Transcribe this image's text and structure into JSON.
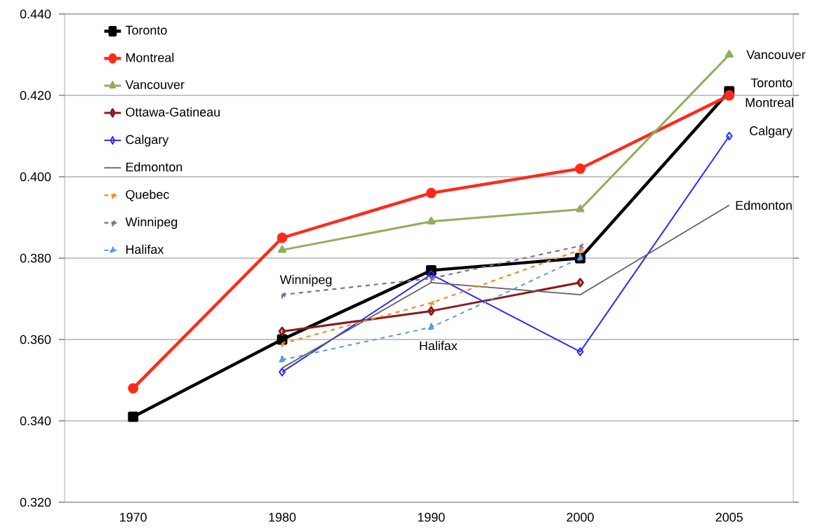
{
  "chart_data": {
    "type": "line",
    "categories": [
      "1970",
      "1980",
      "1990",
      "2000",
      "2005"
    ],
    "series": [
      {
        "name": "Toronto",
        "color": "#000000",
        "marker": "square",
        "values": [
          0.341,
          0.36,
          0.377,
          0.38,
          0.421
        ]
      },
      {
        "name": "Montreal",
        "color": "#ff2a1a",
        "marker": "circle",
        "values": [
          0.348,
          0.385,
          0.396,
          0.402,
          0.42
        ]
      },
      {
        "name": "Vancouver",
        "color": "#8fb05a",
        "marker": "triangle",
        "values": [
          null,
          0.382,
          0.389,
          0.392,
          0.43
        ]
      },
      {
        "name": "Ottawa-Gatineau",
        "color": "#8b1a1a",
        "marker": "diamond",
        "values": [
          null,
          0.362,
          0.367,
          0.374,
          null
        ]
      },
      {
        "name": "Calgary",
        "color": "#2a2aff",
        "marker": "diamond",
        "values": [
          null,
          0.352,
          0.376,
          0.357,
          0.41
        ]
      },
      {
        "name": "Edmonton",
        "color": "#606060",
        "marker": "none",
        "values": [
          null,
          0.353,
          0.374,
          0.371,
          0.393
        ]
      },
      {
        "name": "Quebec",
        "color": "#f08c28",
        "marker": "cross",
        "line_style": "dashed",
        "values": [
          null,
          0.359,
          0.369,
          0.382,
          null
        ]
      },
      {
        "name": "Winnipeg",
        "color": "#7a6e9a",
        "marker": "cross",
        "line_style": "dashed",
        "values": [
          null,
          0.371,
          0.375,
          0.383,
          null
        ]
      },
      {
        "name": "Halifax",
        "color": "#5a9ad8",
        "marker": "triangle",
        "line_style": "dashed",
        "values": [
          null,
          0.355,
          0.363,
          0.38,
          null
        ]
      }
    ],
    "ylim": [
      0.32,
      0.44
    ],
    "yticks": [
      {
        "value": 0.32,
        "label": "0.320"
      },
      {
        "value": 0.34,
        "label": "0.340"
      },
      {
        "value": 0.36,
        "label": "0.360"
      },
      {
        "value": 0.38,
        "label": "0.380"
      },
      {
        "value": 0.4,
        "label": "0.400"
      },
      {
        "value": 0.42,
        "label": "0.420"
      },
      {
        "value": 0.44,
        "label": "0.440"
      }
    ],
    "grid": "y",
    "legend": "top left",
    "annotations": [
      {
        "text": "Vancouver",
        "x": "2005",
        "y": 0.43
      },
      {
        "text": "Toronto",
        "x": "2005",
        "y": 0.421
      },
      {
        "text": "Montreal",
        "x": "2005",
        "y": 0.42
      },
      {
        "text": "Calgary",
        "x": "2005",
        "y": 0.41
      },
      {
        "text": "Edmonton",
        "x": "2005",
        "y": 0.393
      },
      {
        "text": "Winnipeg",
        "x": "1980",
        "y": 0.371
      },
      {
        "text": "Halifax",
        "x": "1990",
        "y": 0.363
      }
    ]
  }
}
